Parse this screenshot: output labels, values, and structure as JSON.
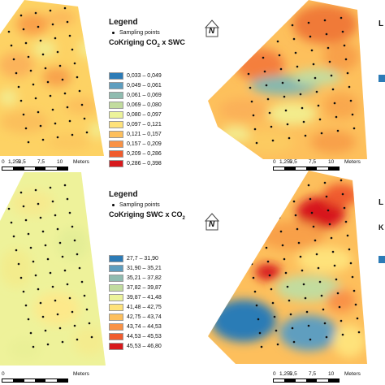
{
  "panels": [
    {
      "legend": {
        "title": "Legend",
        "points_label": "Sampling points",
        "subtitle_pre": "CoKriging CO",
        "subtitle_sub": "2",
        "subtitle_post": " x SWC",
        "classes": [
          {
            "label": "0,033 – 0,049",
            "color": "#2c7bb6"
          },
          {
            "label": "0,049 – 0,061",
            "color": "#5e9ebf"
          },
          {
            "label": "0,061 – 0,069",
            "color": "#8fbcb0"
          },
          {
            "label": "0,069 – 0,080",
            "color": "#c2dc9e"
          },
          {
            "label": "0,080 – 0,097",
            "color": "#ecf39a"
          },
          {
            "label": "0,097 – 0,121",
            "color": "#fee27a"
          },
          {
            "label": "0,121 – 0,157",
            "color": "#fdbf5c"
          },
          {
            "label": "0,157 – 0,209",
            "color": "#f99246"
          },
          {
            "label": "0,209 – 0,286",
            "color": "#f05c2e"
          },
          {
            "label": "0,286 – 0,398",
            "color": "#d7191c"
          }
        ]
      },
      "scale": {
        "ticks": [
          "0",
          "1,252,5",
          "5",
          "7,5",
          "10"
        ],
        "unit": "Meters"
      }
    },
    {
      "scale": {
        "ticks": [
          "0",
          "1,252,5",
          "5",
          "7,5",
          "10"
        ],
        "unit": "Meters"
      },
      "partial_legend": "L"
    },
    {
      "legend": {
        "title": "Legend",
        "points_label": "Sampling points",
        "subtitle_pre": "CoKriging SWC x CO",
        "subtitle_sub": "2",
        "subtitle_post": "",
        "classes": [
          {
            "label": "27,7 – 31,90",
            "color": "#2c7bb6"
          },
          {
            "label": "31,90 – 35,21",
            "color": "#5e9ebf"
          },
          {
            "label": "35,21 – 37,82",
            "color": "#8fbcb0"
          },
          {
            "label": "37,82 – 39,87",
            "color": "#c2dc9e"
          },
          {
            "label": "39,87 – 41,48",
            "color": "#ecf39a"
          },
          {
            "label": "41,48 – 42,75",
            "color": "#fee27a"
          },
          {
            "label": "42,75 – 43,74",
            "color": "#fdbf5c"
          },
          {
            "label": "43,74 – 44,53",
            "color": "#f99246"
          },
          {
            "label": "44,53 – 45,53",
            "color": "#f05c2e"
          },
          {
            "label": "45,53 – 46,80",
            "color": "#d7191c"
          }
        ]
      },
      "scale": {
        "ticks": [
          "0"
        ],
        "unit": "Meters"
      }
    },
    {
      "scale": {
        "ticks": [
          "0",
          "1,252,5",
          "5",
          "7,5",
          "10"
        ],
        "unit": "Meters"
      },
      "partial_legend": "L",
      "partial_legend_2": "K"
    }
  ],
  "north_arrow": {
    "label": "N",
    "icon": "north-arrow-icon"
  }
}
